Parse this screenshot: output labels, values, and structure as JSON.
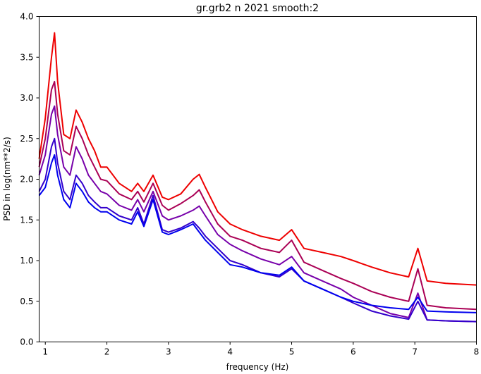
{
  "chart_data": {
    "type": "line",
    "title": "gr.grb2 n 2021 smooth:2",
    "xlabel": "frequency (Hz)",
    "ylabel": "PSD in log(nm**2/s)",
    "xlim": [
      0.9,
      8.0
    ],
    "ylim": [
      0.0,
      4.0
    ],
    "xticks": [
      1,
      2,
      3,
      4,
      5,
      6,
      7,
      8
    ],
    "xtick_labels": [
      "1",
      "2",
      "3",
      "4",
      "5",
      "6",
      "7",
      "8"
    ],
    "yticks": [
      0.0,
      0.5,
      1.0,
      1.5,
      2.0,
      2.5,
      3.0,
      3.5,
      4.0
    ],
    "ytick_labels": [
      "0.0",
      "0.5",
      "1.0",
      "1.5",
      "2.0",
      "2.5",
      "3.0",
      "3.5",
      "4.0"
    ],
    "grid": false,
    "legend": "none",
    "x": [
      0.9,
      1.0,
      1.1,
      1.15,
      1.2,
      1.3,
      1.4,
      1.5,
      1.6,
      1.7,
      1.8,
      1.9,
      2.0,
      2.2,
      2.4,
      2.5,
      2.6,
      2.75,
      2.9,
      3.0,
      3.2,
      3.4,
      3.5,
      3.6,
      3.8,
      4.0,
      4.2,
      4.5,
      4.8,
      5.0,
      5.2,
      5.5,
      5.8,
      6.0,
      6.3,
      6.6,
      6.9,
      7.05,
      7.2,
      7.5,
      8.0
    ],
    "series": [
      {
        "color": "#ee0000",
        "values": [
          2.25,
          2.75,
          3.5,
          3.8,
          3.2,
          2.55,
          2.5,
          2.85,
          2.7,
          2.5,
          2.35,
          2.15,
          2.15,
          1.95,
          1.85,
          1.95,
          1.85,
          2.05,
          1.78,
          1.75,
          1.82,
          2.0,
          2.06,
          1.9,
          1.6,
          1.45,
          1.38,
          1.3,
          1.25,
          1.38,
          1.15,
          1.1,
          1.05,
          1.0,
          0.92,
          0.85,
          0.8,
          1.15,
          0.75,
          0.72,
          0.7
        ]
      },
      {
        "color": "#aa0055",
        "values": [
          2.15,
          2.5,
          3.1,
          3.2,
          2.8,
          2.35,
          2.3,
          2.65,
          2.5,
          2.3,
          2.15,
          2.0,
          1.98,
          1.82,
          1.75,
          1.85,
          1.72,
          1.95,
          1.68,
          1.62,
          1.7,
          1.8,
          1.87,
          1.72,
          1.45,
          1.3,
          1.25,
          1.15,
          1.1,
          1.25,
          0.98,
          0.88,
          0.78,
          0.72,
          0.62,
          0.55,
          0.5,
          0.9,
          0.45,
          0.42,
          0.4
        ]
      },
      {
        "color": "#7700aa",
        "values": [
          2.05,
          2.3,
          2.8,
          2.9,
          2.55,
          2.15,
          2.05,
          2.4,
          2.25,
          2.05,
          1.95,
          1.85,
          1.82,
          1.68,
          1.62,
          1.75,
          1.6,
          1.85,
          1.55,
          1.5,
          1.55,
          1.62,
          1.67,
          1.55,
          1.32,
          1.2,
          1.12,
          1.02,
          0.95,
          1.05,
          0.85,
          0.75,
          0.65,
          0.55,
          0.45,
          0.35,
          0.3,
          0.6,
          0.27,
          0.26,
          0.25
        ]
      },
      {
        "color": "#3300cc",
        "values": [
          1.85,
          2.0,
          2.4,
          2.5,
          2.2,
          1.85,
          1.75,
          2.05,
          1.95,
          1.8,
          1.72,
          1.65,
          1.65,
          1.55,
          1.5,
          1.65,
          1.45,
          1.8,
          1.38,
          1.35,
          1.4,
          1.48,
          1.4,
          1.3,
          1.15,
          1.0,
          0.95,
          0.85,
          0.8,
          0.9,
          0.75,
          0.65,
          0.55,
          0.48,
          0.38,
          0.32,
          0.28,
          0.5,
          0.27,
          0.26,
          0.25
        ]
      },
      {
        "color": "#0000ee",
        "values": [
          1.8,
          1.9,
          2.2,
          2.3,
          2.05,
          1.75,
          1.65,
          1.95,
          1.85,
          1.72,
          1.65,
          1.6,
          1.6,
          1.5,
          1.45,
          1.6,
          1.42,
          1.75,
          1.35,
          1.32,
          1.38,
          1.45,
          1.35,
          1.25,
          1.1,
          0.95,
          0.92,
          0.85,
          0.82,
          0.92,
          0.75,
          0.65,
          0.55,
          0.5,
          0.45,
          0.42,
          0.4,
          0.55,
          0.38,
          0.37,
          0.36
        ]
      }
    ]
  }
}
